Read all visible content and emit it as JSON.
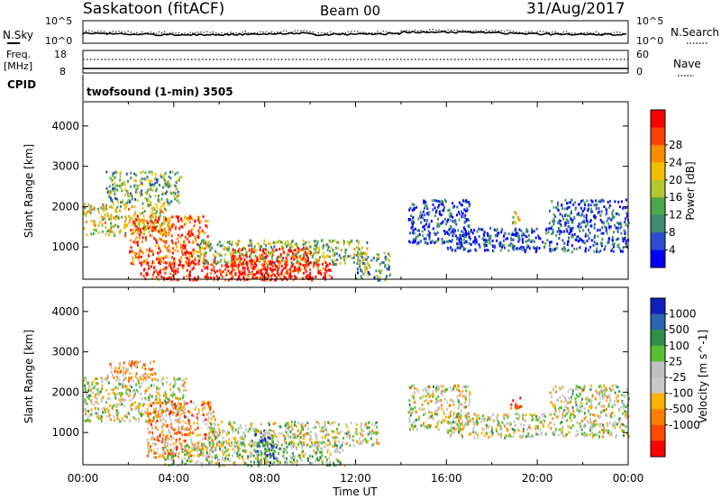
{
  "header": {
    "station": "Saskatoon (fitACF)",
    "beam": "Beam 00",
    "date": "31/Aug/2017"
  },
  "noise_panel": {
    "left_label": "N.Sky",
    "left_ticks": [
      "10^5",
      "10^0"
    ],
    "right_label": "N.Search",
    "right_ticks": [
      "10^5",
      "10^0"
    ]
  },
  "freq_panel": {
    "left_label_1": "Freq.",
    "left_label_2": "[MHz]",
    "left_ticks": [
      "18",
      "8"
    ],
    "right_label": "Nave",
    "right_ticks": [
      "60",
      "0"
    ]
  },
  "cpid": {
    "label": "CPID",
    "value": "twofsound (1-min) 3505"
  },
  "colors": {
    "power_scale": [
      "#0000ff",
      "#2a4fd0",
      "#3f8a72",
      "#4aa84a",
      "#b4c830",
      "#f0c000",
      "#ff8c00",
      "#ff4000",
      "#ff0000"
    ],
    "velocity_scale": [
      "#1020c0",
      "#2b65b0",
      "#2e8f4a",
      "#58c030",
      "#c0c0c0",
      "#c8c8c8",
      "#ffb000",
      "#ff8000",
      "#ff4a00",
      "#ff0000"
    ]
  },
  "chart_data": [
    {
      "type": "heatmap",
      "name": "Power",
      "ylabel": "Slant Range [km]",
      "yticks": [
        1000,
        2000,
        3000,
        4000
      ],
      "ylim": [
        200,
        4600
      ],
      "xlim_hours": [
        0,
        24
      ],
      "colorbar": {
        "label": "Power [dB]",
        "ticks": [
          "4",
          "8",
          "12",
          "16",
          "20",
          "24",
          "28"
        ]
      },
      "echo_regions": [
        {
          "t0": 0.0,
          "t1": 3.8,
          "r0": 1300,
          "r1": 2100,
          "level": 0.55
        },
        {
          "t0": 1.0,
          "t1": 4.3,
          "r0": 2100,
          "r1": 2900,
          "level": 0.4
        },
        {
          "t0": 2.0,
          "t1": 5.5,
          "r0": 600,
          "r1": 1800,
          "level": 0.8
        },
        {
          "t0": 2.5,
          "t1": 11.0,
          "r0": 200,
          "r1": 700,
          "level": 0.95
        },
        {
          "t0": 5.0,
          "t1": 12.5,
          "r0": 600,
          "r1": 1200,
          "level": 0.45
        },
        {
          "t0": 6.5,
          "t1": 10.0,
          "r0": 200,
          "r1": 1000,
          "level": 0.9
        },
        {
          "t0": 12.0,
          "t1": 13.5,
          "r0": 200,
          "r1": 900,
          "level": 0.35
        },
        {
          "t0": 14.3,
          "t1": 17.0,
          "r0": 1100,
          "r1": 2200,
          "level": 0.15
        },
        {
          "t0": 16.0,
          "t1": 24.0,
          "r0": 900,
          "r1": 1500,
          "level": 0.15
        },
        {
          "t0": 18.8,
          "t1": 19.3,
          "r0": 1600,
          "r1": 1900,
          "level": 0.6
        },
        {
          "t0": 20.5,
          "t1": 24.0,
          "r0": 1500,
          "r1": 2200,
          "level": 0.15
        }
      ]
    },
    {
      "type": "heatmap",
      "name": "Velocity",
      "xlabel": "Time UT",
      "ylabel": "Slant Range [km]",
      "yticks": [
        1000,
        2000,
        3000,
        4000
      ],
      "ylim": [
        200,
        4600
      ],
      "xlim_hours": [
        0,
        24
      ],
      "xticks": [
        "00:00",
        "04:00",
        "08:00",
        "12:00",
        "16:00",
        "20:00",
        "00:00"
      ],
      "colorbar": {
        "label": "Velocity [m s^-1]",
        "ticks": [
          "1000",
          "500",
          "100",
          "25",
          "-25",
          "-100",
          "-500",
          "-1000"
        ]
      },
      "echo_regions": [
        {
          "t0": 0.0,
          "t1": 4.5,
          "r0": 1300,
          "r1": 2400,
          "level": 0.5
        },
        {
          "t0": 1.0,
          "t1": 3.2,
          "r0": 2300,
          "r1": 2800,
          "level": 0.65
        },
        {
          "t0": 2.8,
          "t1": 5.8,
          "r0": 400,
          "r1": 1800,
          "level": 0.7
        },
        {
          "t0": 3.5,
          "t1": 11.5,
          "r0": 200,
          "r1": 800,
          "level": 0.45
        },
        {
          "t0": 5.5,
          "t1": 13.0,
          "r0": 700,
          "r1": 1300,
          "level": 0.5
        },
        {
          "t0": 7.5,
          "t1": 8.5,
          "r0": 200,
          "r1": 1100,
          "level": 0.2
        },
        {
          "t0": 14.3,
          "t1": 17.0,
          "r0": 1100,
          "r1": 2200,
          "level": 0.5
        },
        {
          "t0": 16.0,
          "t1": 24.0,
          "r0": 900,
          "r1": 1500,
          "level": 0.5
        },
        {
          "t0": 18.8,
          "t1": 19.3,
          "r0": 1600,
          "r1": 1900,
          "level": 0.95
        },
        {
          "t0": 20.5,
          "t1": 24.0,
          "r0": 1500,
          "r1": 2200,
          "level": 0.5
        }
      ]
    }
  ]
}
